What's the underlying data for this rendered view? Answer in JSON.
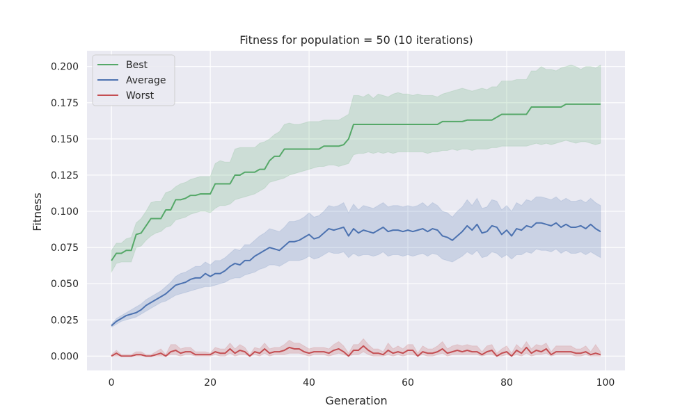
{
  "chart_data": {
    "type": "line",
    "title": "Fitness for population = 50 (10 iterations)",
    "xlabel": "Generation",
    "ylabel": "Fitness",
    "xlim": [
      -4.95,
      103.95
    ],
    "ylim": [
      -0.0099,
      0.2109
    ],
    "xticks": [
      0,
      20,
      40,
      60,
      80,
      100
    ],
    "yticks": [
      0.0,
      0.025,
      0.05,
      0.075,
      0.1,
      0.125,
      0.15,
      0.175,
      0.2
    ],
    "grid": true,
    "legend": {
      "position": "upper-left",
      "entries": [
        "Best",
        "Average",
        "Worst"
      ]
    },
    "colors": {
      "background": "#eaeaf2",
      "grid": "#ffffff",
      "best": "#55a868",
      "average": "#4c72b0",
      "worst": "#c44e52"
    },
    "x_start": 0,
    "series": [
      {
        "name": "Best",
        "values": [
          0.066,
          0.071,
          0.071,
          0.073,
          0.073,
          0.084,
          0.085,
          0.09,
          0.095,
          0.095,
          0.095,
          0.101,
          0.101,
          0.108,
          0.108,
          0.109,
          0.111,
          0.111,
          0.112,
          0.112,
          0.112,
          0.119,
          0.119,
          0.119,
          0.119,
          0.125,
          0.125,
          0.127,
          0.127,
          0.127,
          0.129,
          0.129,
          0.135,
          0.138,
          0.138,
          0.143,
          0.143,
          0.143,
          0.143,
          0.143,
          0.143,
          0.143,
          0.143,
          0.145,
          0.145,
          0.145,
          0.145,
          0.146,
          0.15,
          0.16,
          0.16,
          0.16,
          0.16,
          0.16,
          0.16,
          0.16,
          0.16,
          0.16,
          0.16,
          0.16,
          0.16,
          0.16,
          0.16,
          0.16,
          0.16,
          0.16,
          0.16,
          0.162,
          0.162,
          0.162,
          0.162,
          0.162,
          0.163,
          0.163,
          0.163,
          0.163,
          0.163,
          0.163,
          0.165,
          0.167,
          0.167,
          0.167,
          0.167,
          0.167,
          0.167,
          0.172,
          0.172,
          0.172,
          0.172,
          0.172,
          0.172,
          0.172,
          0.174,
          0.174,
          0.174,
          0.174,
          0.174,
          0.174,
          0.174,
          0.174
        ],
        "lower": [
          0.058,
          0.064,
          0.065,
          0.065,
          0.065,
          0.075,
          0.076,
          0.08,
          0.083,
          0.085,
          0.086,
          0.089,
          0.09,
          0.094,
          0.095,
          0.096,
          0.098,
          0.099,
          0.1,
          0.1,
          0.099,
          0.102,
          0.104,
          0.104,
          0.105,
          0.108,
          0.109,
          0.11,
          0.111,
          0.112,
          0.114,
          0.116,
          0.12,
          0.121,
          0.122,
          0.123,
          0.125,
          0.126,
          0.127,
          0.128,
          0.129,
          0.13,
          0.131,
          0.131,
          0.132,
          0.132,
          0.131,
          0.132,
          0.133,
          0.139,
          0.14,
          0.14,
          0.141,
          0.14,
          0.141,
          0.14,
          0.141,
          0.14,
          0.141,
          0.141,
          0.141,
          0.141,
          0.141,
          0.141,
          0.14,
          0.141,
          0.141,
          0.142,
          0.142,
          0.143,
          0.142,
          0.143,
          0.143,
          0.142,
          0.143,
          0.143,
          0.143,
          0.144,
          0.144,
          0.145,
          0.145,
          0.145,
          0.145,
          0.145,
          0.145,
          0.146,
          0.147,
          0.146,
          0.147,
          0.146,
          0.147,
          0.148,
          0.149,
          0.148,
          0.147,
          0.148,
          0.148,
          0.147,
          0.146,
          0.147
        ],
        "upper": [
          0.073,
          0.078,
          0.078,
          0.081,
          0.082,
          0.092,
          0.095,
          0.1,
          0.106,
          0.107,
          0.107,
          0.113,
          0.114,
          0.117,
          0.119,
          0.12,
          0.122,
          0.123,
          0.124,
          0.124,
          0.124,
          0.133,
          0.135,
          0.134,
          0.134,
          0.143,
          0.144,
          0.144,
          0.144,
          0.144,
          0.147,
          0.148,
          0.15,
          0.153,
          0.155,
          0.16,
          0.161,
          0.16,
          0.16,
          0.161,
          0.162,
          0.162,
          0.162,
          0.163,
          0.163,
          0.163,
          0.163,
          0.165,
          0.167,
          0.18,
          0.18,
          0.179,
          0.181,
          0.178,
          0.181,
          0.18,
          0.179,
          0.181,
          0.182,
          0.181,
          0.181,
          0.18,
          0.181,
          0.18,
          0.18,
          0.18,
          0.179,
          0.181,
          0.182,
          0.183,
          0.184,
          0.185,
          0.184,
          0.183,
          0.184,
          0.185,
          0.184,
          0.186,
          0.186,
          0.19,
          0.19,
          0.19,
          0.191,
          0.191,
          0.191,
          0.197,
          0.197,
          0.2,
          0.198,
          0.198,
          0.197,
          0.199,
          0.2,
          0.201,
          0.2,
          0.198,
          0.2,
          0.2,
          0.199,
          0.201
        ]
      },
      {
        "name": "Average",
        "values": [
          0.021,
          0.024,
          0.026,
          0.028,
          0.029,
          0.03,
          0.032,
          0.035,
          0.037,
          0.039,
          0.041,
          0.043,
          0.046,
          0.049,
          0.05,
          0.051,
          0.053,
          0.054,
          0.054,
          0.057,
          0.055,
          0.057,
          0.057,
          0.059,
          0.062,
          0.064,
          0.063,
          0.066,
          0.066,
          0.069,
          0.071,
          0.073,
          0.075,
          0.074,
          0.073,
          0.076,
          0.079,
          0.079,
          0.08,
          0.082,
          0.084,
          0.081,
          0.082,
          0.085,
          0.088,
          0.087,
          0.088,
          0.089,
          0.083,
          0.088,
          0.085,
          0.087,
          0.086,
          0.085,
          0.087,
          0.089,
          0.086,
          0.087,
          0.087,
          0.086,
          0.087,
          0.086,
          0.087,
          0.088,
          0.086,
          0.088,
          0.087,
          0.083,
          0.082,
          0.08,
          0.083,
          0.086,
          0.09,
          0.087,
          0.091,
          0.085,
          0.086,
          0.09,
          0.089,
          0.084,
          0.087,
          0.083,
          0.088,
          0.087,
          0.09,
          0.089,
          0.092,
          0.092,
          0.091,
          0.09,
          0.092,
          0.089,
          0.091,
          0.089,
          0.089,
          0.09,
          0.088,
          0.091,
          0.088,
          0.086
        ],
        "lower": [
          0.02,
          0.022,
          0.024,
          0.025,
          0.026,
          0.027,
          0.029,
          0.031,
          0.033,
          0.035,
          0.037,
          0.038,
          0.04,
          0.042,
          0.043,
          0.044,
          0.045,
          0.046,
          0.047,
          0.048,
          0.048,
          0.049,
          0.05,
          0.051,
          0.053,
          0.054,
          0.054,
          0.056,
          0.057,
          0.058,
          0.06,
          0.061,
          0.063,
          0.063,
          0.062,
          0.064,
          0.066,
          0.066,
          0.066,
          0.067,
          0.069,
          0.067,
          0.068,
          0.07,
          0.072,
          0.071,
          0.071,
          0.072,
          0.068,
          0.071,
          0.069,
          0.07,
          0.07,
          0.069,
          0.07,
          0.072,
          0.069,
          0.07,
          0.07,
          0.069,
          0.07,
          0.069,
          0.07,
          0.071,
          0.069,
          0.071,
          0.07,
          0.067,
          0.066,
          0.065,
          0.067,
          0.069,
          0.072,
          0.07,
          0.073,
          0.068,
          0.069,
          0.072,
          0.071,
          0.068,
          0.07,
          0.067,
          0.07,
          0.07,
          0.072,
          0.071,
          0.074,
          0.073,
          0.073,
          0.072,
          0.074,
          0.071,
          0.073,
          0.071,
          0.071,
          0.072,
          0.07,
          0.072,
          0.07,
          0.068
        ],
        "upper": [
          0.022,
          0.026,
          0.028,
          0.03,
          0.032,
          0.034,
          0.036,
          0.039,
          0.041,
          0.043,
          0.045,
          0.048,
          0.051,
          0.055,
          0.057,
          0.058,
          0.06,
          0.062,
          0.062,
          0.065,
          0.063,
          0.066,
          0.066,
          0.068,
          0.071,
          0.074,
          0.073,
          0.077,
          0.077,
          0.08,
          0.083,
          0.085,
          0.088,
          0.087,
          0.086,
          0.089,
          0.093,
          0.093,
          0.094,
          0.096,
          0.099,
          0.096,
          0.097,
          0.1,
          0.104,
          0.103,
          0.104,
          0.106,
          0.099,
          0.105,
          0.101,
          0.104,
          0.103,
          0.102,
          0.104,
          0.106,
          0.103,
          0.104,
          0.104,
          0.103,
          0.104,
          0.103,
          0.104,
          0.106,
          0.103,
          0.106,
          0.104,
          0.1,
          0.099,
          0.096,
          0.1,
          0.103,
          0.108,
          0.104,
          0.109,
          0.102,
          0.103,
          0.108,
          0.107,
          0.101,
          0.104,
          0.1,
          0.106,
          0.104,
          0.108,
          0.107,
          0.11,
          0.11,
          0.109,
          0.108,
          0.11,
          0.107,
          0.109,
          0.107,
          0.107,
          0.108,
          0.106,
          0.109,
          0.106,
          0.104
        ]
      },
      {
        "name": "Worst",
        "values": [
          0.0,
          0.002,
          0.0,
          0.0,
          0.0,
          0.001,
          0.001,
          0.0,
          0.0,
          0.001,
          0.002,
          0.0,
          0.003,
          0.004,
          0.002,
          0.003,
          0.003,
          0.001,
          0.001,
          0.001,
          0.001,
          0.003,
          0.002,
          0.002,
          0.005,
          0.002,
          0.004,
          0.003,
          0.0,
          0.003,
          0.002,
          0.005,
          0.002,
          0.003,
          0.003,
          0.004,
          0.006,
          0.005,
          0.005,
          0.003,
          0.002,
          0.003,
          0.003,
          0.003,
          0.002,
          0.004,
          0.005,
          0.003,
          0.0,
          0.004,
          0.004,
          0.007,
          0.004,
          0.002,
          0.002,
          0.001,
          0.004,
          0.002,
          0.003,
          0.002,
          0.004,
          0.004,
          0.0,
          0.003,
          0.002,
          0.002,
          0.003,
          0.005,
          0.002,
          0.003,
          0.004,
          0.003,
          0.004,
          0.003,
          0.003,
          0.001,
          0.003,
          0.004,
          0.0,
          0.002,
          0.003,
          0.0,
          0.004,
          0.002,
          0.006,
          0.002,
          0.004,
          0.003,
          0.005,
          0.001,
          0.003,
          0.003,
          0.003,
          0.003,
          0.002,
          0.002,
          0.003,
          0.001,
          0.002,
          0.001
        ],
        "lower": [
          0.0,
          0.0,
          0.0,
          0.0,
          0.0,
          0.0,
          0.0,
          0.0,
          0.0,
          0.0,
          0.0,
          0.0,
          0.001,
          0.001,
          0.0,
          0.001,
          0.001,
          0.0,
          0.0,
          0.0,
          0.0,
          0.001,
          0.0,
          0.0,
          0.002,
          0.0,
          0.001,
          0.001,
          0.0,
          0.001,
          0.0,
          0.002,
          0.0,
          0.001,
          0.001,
          0.001,
          0.002,
          0.002,
          0.002,
          0.001,
          0.0,
          0.001,
          0.001,
          0.001,
          0.0,
          0.001,
          0.002,
          0.001,
          0.0,
          0.001,
          0.001,
          0.003,
          0.001,
          0.0,
          0.0,
          0.0,
          0.001,
          0.0,
          0.001,
          0.0,
          0.001,
          0.001,
          0.0,
          0.001,
          0.0,
          0.0,
          0.001,
          0.002,
          0.0,
          0.001,
          0.001,
          0.001,
          0.001,
          0.001,
          0.001,
          0.0,
          0.001,
          0.001,
          0.0,
          0.0,
          0.001,
          0.0,
          0.001,
          0.0,
          0.002,
          0.0,
          0.001,
          0.001,
          0.002,
          0.0,
          0.001,
          0.001,
          0.001,
          0.001,
          0.0,
          0.0,
          0.001,
          0.0,
          0.0,
          0.0
        ],
        "upper": [
          0.001,
          0.004,
          0.001,
          0.001,
          0.001,
          0.003,
          0.003,
          0.001,
          0.001,
          0.003,
          0.005,
          0.001,
          0.008,
          0.008,
          0.005,
          0.006,
          0.006,
          0.003,
          0.003,
          0.003,
          0.002,
          0.006,
          0.005,
          0.005,
          0.009,
          0.005,
          0.008,
          0.006,
          0.001,
          0.006,
          0.005,
          0.009,
          0.005,
          0.006,
          0.006,
          0.008,
          0.011,
          0.009,
          0.009,
          0.007,
          0.005,
          0.006,
          0.006,
          0.006,
          0.005,
          0.008,
          0.01,
          0.007,
          0.002,
          0.008,
          0.008,
          0.012,
          0.008,
          0.005,
          0.005,
          0.003,
          0.009,
          0.005,
          0.007,
          0.005,
          0.008,
          0.008,
          0.002,
          0.007,
          0.005,
          0.005,
          0.007,
          0.01,
          0.005,
          0.007,
          0.008,
          0.007,
          0.008,
          0.007,
          0.007,
          0.003,
          0.007,
          0.008,
          0.002,
          0.005,
          0.007,
          0.002,
          0.008,
          0.005,
          0.01,
          0.005,
          0.008,
          0.007,
          0.009,
          0.003,
          0.007,
          0.007,
          0.007,
          0.007,
          0.005,
          0.005,
          0.007,
          0.003,
          0.008,
          0.003
        ]
      }
    ]
  }
}
